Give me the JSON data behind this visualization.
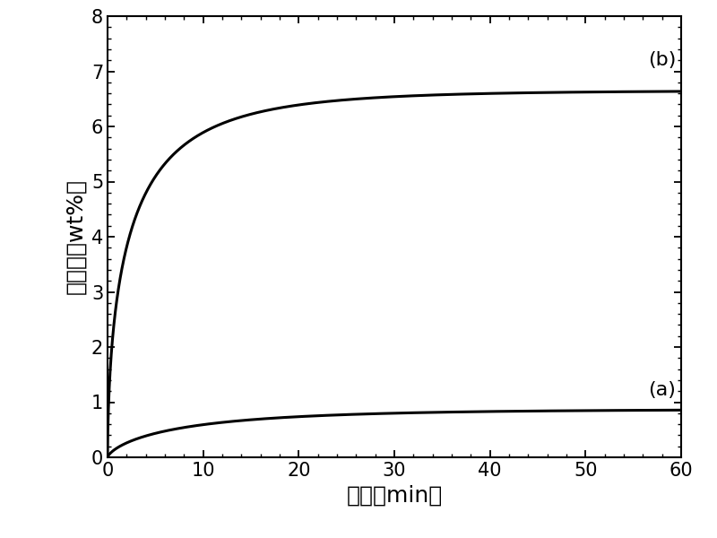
{
  "title": "",
  "xlabel": "时间（min）",
  "ylabel": "吸氢量（wt%）",
  "xlim": [
    0,
    60
  ],
  "ylim": [
    0,
    8
  ],
  "xticks": [
    0,
    10,
    20,
    30,
    40,
    50,
    60
  ],
  "yticks": [
    0,
    1,
    2,
    3,
    4,
    5,
    6,
    7,
    8
  ],
  "label_a": "(a)",
  "label_b": "(b)",
  "line_color": "#000000",
  "background_color": "#ffffff",
  "label_fontsize": 16,
  "tick_fontsize": 15,
  "axis_label_fontsize": 18,
  "curve_b_A": 6.65,
  "curve_b_k": 0.38,
  "curve_b_n": 0.58,
  "curve_a_A": 0.87,
  "curve_a_k": 0.12,
  "curve_a_n": 0.72
}
